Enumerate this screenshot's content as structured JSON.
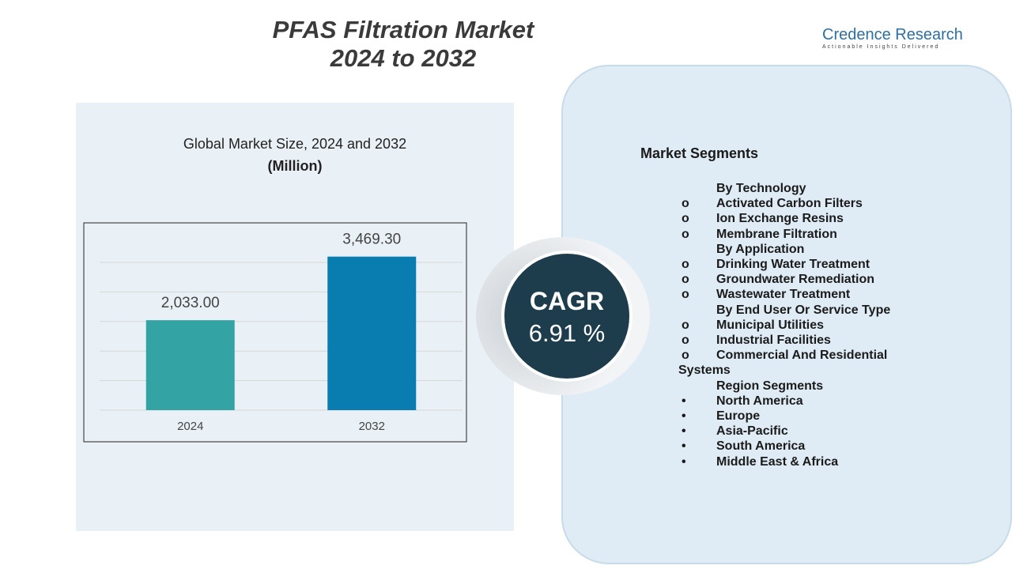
{
  "title": [
    "PFAS Filtration Market",
    "2024 to 2032"
  ],
  "logo": {
    "name": "Credence Research",
    "tagline": "Actionable Insights Delivered"
  },
  "chart_data": {
    "type": "bar",
    "title": "Global Market Size, 2024 and 2032",
    "unit": "(Million)",
    "categories": [
      "2024",
      "2032"
    ],
    "values": [
      2033.0,
      3469.3
    ],
    "value_labels": [
      "2,033.00",
      "3,469.30"
    ],
    "colors": [
      "#33a3a3",
      "#0a7db0"
    ],
    "ylim": [
      0,
      4000
    ]
  },
  "cagr": {
    "label": "CAGR",
    "value": "6.91 %"
  },
  "segments": {
    "heading": "Market Segments",
    "groups": [
      {
        "title": "By Technology",
        "marker": "o",
        "items": [
          "Activated Carbon Filters",
          "Ion Exchange Resins",
          "Membrane Filtration"
        ]
      },
      {
        "title": "By Application",
        "marker": "o",
        "items": [
          "Drinking Water Treatment",
          "Groundwater Remediation",
          "Wastewater Treatment"
        ]
      },
      {
        "title": "By End User Or Service Type",
        "marker": "o",
        "items": [
          "Municipal Utilities",
          "Industrial Facilities",
          "Commercial And Residential Systems"
        ]
      },
      {
        "title": "Region Segments",
        "marker": "•",
        "items": [
          "North America",
          "Europe",
          "Asia-Pacific",
          "South America",
          "Middle East & Africa"
        ]
      }
    ]
  }
}
